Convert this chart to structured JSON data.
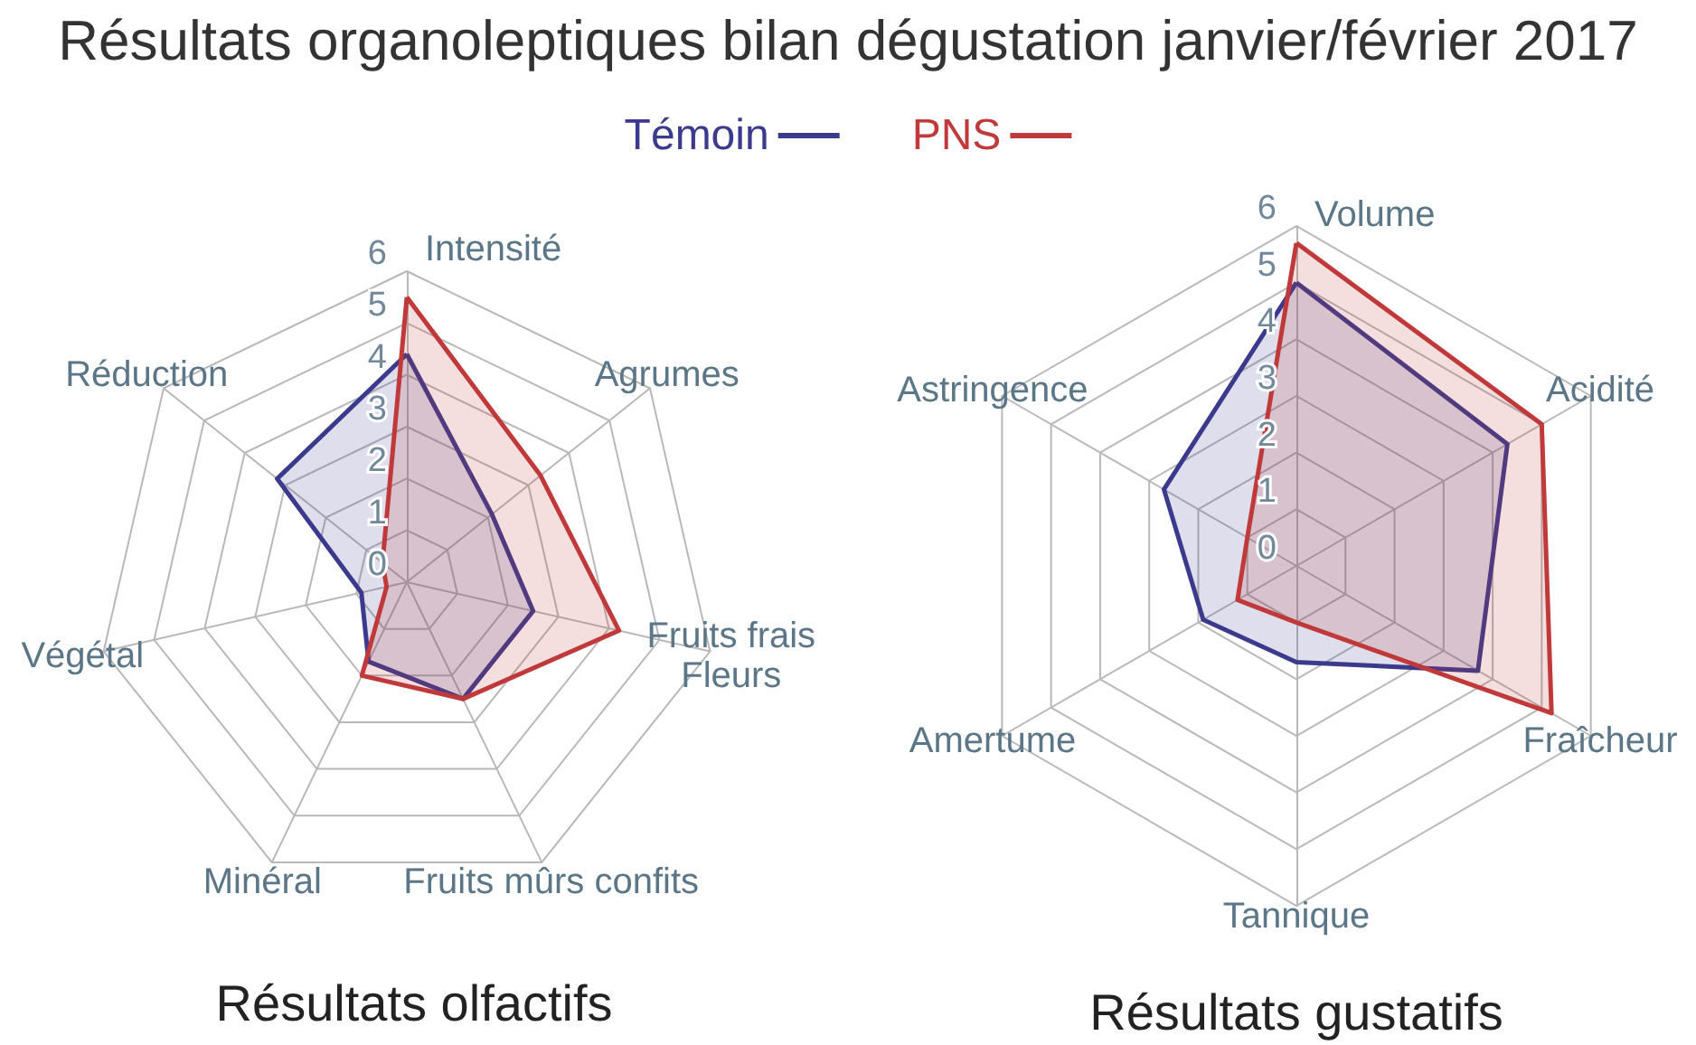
{
  "chart_data": [
    {
      "type": "radar",
      "title": "Résultats organoleptiques bilan dégustation janvier/février 2017",
      "subtitle": "Résultats olfactifs",
      "categories": [
        "Intensité",
        "Agrumes",
        "Fruits frais\nFleurs",
        "Fruits mûrs confits",
        "Minéral",
        "Végétal",
        "Réduction"
      ],
      "series": [
        {
          "name": "Témoin",
          "color": "#3b3a8c",
          "values": [
            4.4,
            2.1,
            2.5,
            2.5,
            1.7,
            0.9,
            3.2
          ]
        },
        {
          "name": "PNS",
          "color": "#c0393b",
          "values": [
            5.5,
            3.3,
            4.2,
            2.5,
            2.0,
            0.4,
            0.6
          ]
        }
      ],
      "ylim": [
        0,
        6
      ],
      "yticks": [
        0,
        1,
        2,
        3,
        4,
        5,
        6
      ],
      "grid": true,
      "legend": "top",
      "marker": "none"
    },
    {
      "type": "radar",
      "subtitle": "Résultats gustatifs",
      "categories": [
        "Volume",
        "Acidité",
        "Fraîcheur",
        "Tannique",
        "Amertume",
        "Astringence"
      ],
      "series": [
        {
          "name": "Témoin",
          "color": "#3b3a8c",
          "values": [
            5.0,
            4.3,
            3.7,
            1.7,
            1.9,
            2.7
          ]
        },
        {
          "name": "PNS",
          "color": "#c0393b",
          "values": [
            5.7,
            5.0,
            5.2,
            1.0,
            1.2,
            1.0
          ]
        }
      ],
      "ylim": [
        0,
        6
      ],
      "yticks": [
        0,
        1,
        2,
        3,
        4,
        5,
        6
      ],
      "grid": true,
      "marker": "none"
    }
  ]
}
